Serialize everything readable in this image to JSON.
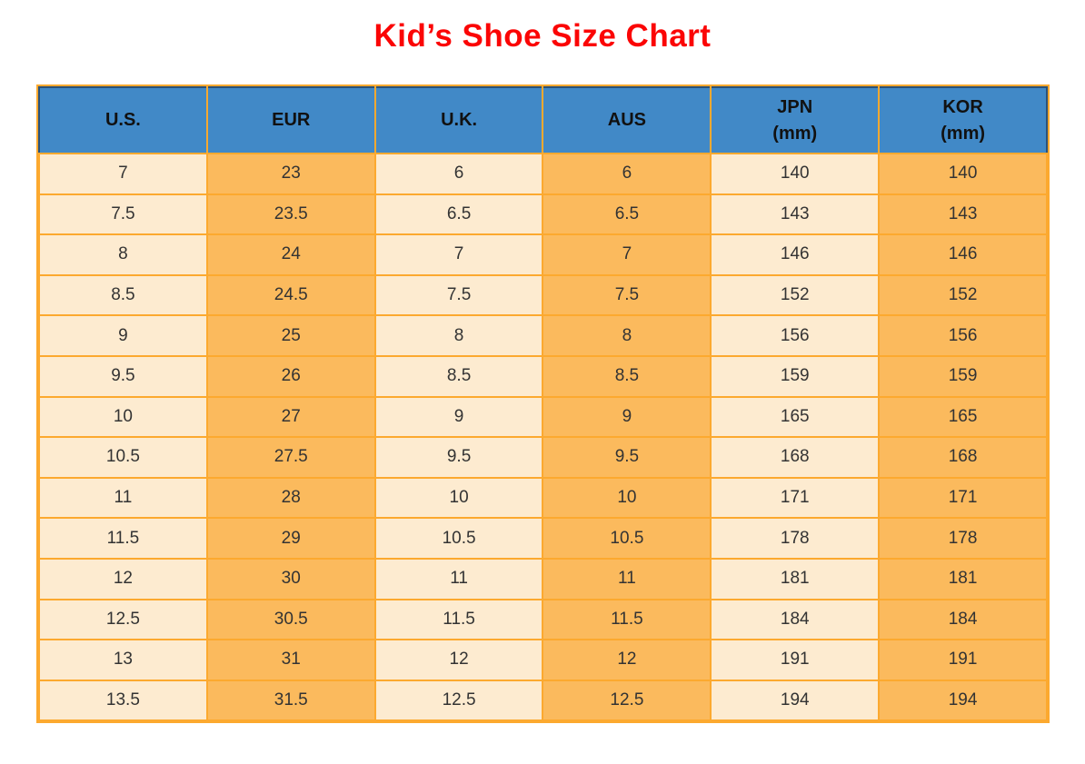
{
  "title": "Kid’s Shoe Size Chart",
  "colors": {
    "title_red": "#FB0505",
    "header_blue": "#4189C7",
    "header_outline_navy": "#2B5278",
    "grid_orange": "#FCA92F",
    "col_cream": "#FDEBD0",
    "col_orange": "#FBBA5D",
    "data_text": "#333333",
    "header_text": "#111111"
  },
  "table": {
    "headers": [
      {
        "label": "U.S.",
        "sub": ""
      },
      {
        "label": "EUR",
        "sub": ""
      },
      {
        "label": "U.K.",
        "sub": ""
      },
      {
        "label": "AUS",
        "sub": ""
      },
      {
        "label": "JPN",
        "sub": "(mm)"
      },
      {
        "label": "KOR",
        "sub": "(mm)"
      }
    ],
    "rows": [
      [
        "7",
        "23",
        "6",
        "6",
        "140",
        "140"
      ],
      [
        "7.5",
        "23.5",
        "6.5",
        "6.5",
        "143",
        "143"
      ],
      [
        "8",
        "24",
        "7",
        "7",
        "146",
        "146"
      ],
      [
        "8.5",
        "24.5",
        "7.5",
        "7.5",
        "152",
        "152"
      ],
      [
        "9",
        "25",
        "8",
        "8",
        "156",
        "156"
      ],
      [
        "9.5",
        "26",
        "8.5",
        "8.5",
        "159",
        "159"
      ],
      [
        "10",
        "27",
        "9",
        "9",
        "165",
        "165"
      ],
      [
        "10.5",
        "27.5",
        "9.5",
        "9.5",
        "168",
        "168"
      ],
      [
        "11",
        "28",
        "10",
        "10",
        "171",
        "171"
      ],
      [
        "11.5",
        "29",
        "10.5",
        "10.5",
        "178",
        "178"
      ],
      [
        "12",
        "30",
        "11",
        "11",
        "181",
        "181"
      ],
      [
        "12.5",
        "30.5",
        "11.5",
        "11.5",
        "184",
        "184"
      ],
      [
        "13",
        "31",
        "12",
        "12",
        "191",
        "191"
      ],
      [
        "13.5",
        "31.5",
        "12.5",
        "12.5",
        "194",
        "194"
      ]
    ]
  },
  "chart_data": {
    "type": "table",
    "title": "Kid's Shoe Size Chart",
    "columns": [
      "U.S.",
      "EUR",
      "U.K.",
      "AUS",
      "JPN (mm)",
      "KOR (mm)"
    ],
    "rows": [
      [
        7,
        23,
        6,
        6,
        140,
        140
      ],
      [
        7.5,
        23.5,
        6.5,
        6.5,
        143,
        143
      ],
      [
        8,
        24,
        7,
        7,
        146,
        146
      ],
      [
        8.5,
        24.5,
        7.5,
        7.5,
        152,
        152
      ],
      [
        9,
        25,
        8,
        8,
        156,
        156
      ],
      [
        9.5,
        26,
        8.5,
        8.5,
        159,
        159
      ],
      [
        10,
        27,
        9,
        9,
        165,
        165
      ],
      [
        10.5,
        27.5,
        9.5,
        9.5,
        168,
        168
      ],
      [
        11,
        28,
        10,
        10,
        171,
        171
      ],
      [
        11.5,
        29,
        10.5,
        10.5,
        178,
        178
      ],
      [
        12,
        30,
        11,
        11,
        181,
        181
      ],
      [
        12.5,
        30.5,
        11.5,
        11.5,
        184,
        184
      ],
      [
        13,
        31,
        12,
        12,
        191,
        191
      ],
      [
        13.5,
        31.5,
        12.5,
        12.5,
        194,
        194
      ]
    ],
    "layout_hints": {
      "column_fill_pattern": "alternating cream/orange by column",
      "header_fill": "blue",
      "grid": "on"
    }
  }
}
